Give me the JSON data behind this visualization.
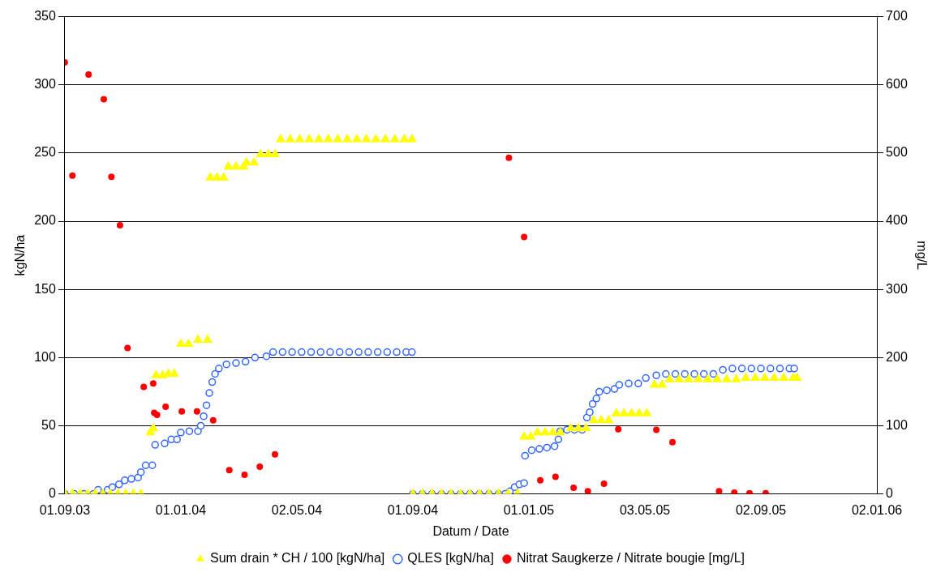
{
  "chart_data": {
    "type": "scatter",
    "xlabel": "Datum / Date",
    "ylabel": "kgN/ha",
    "y2label": "mg/L",
    "xlim": [
      "2003-09-01",
      "2006-01-02"
    ],
    "xticks": [
      {
        "value": "2003-09-01",
        "label": "01.09.03"
      },
      {
        "value": "2004-01-01",
        "label": "01.01.04"
      },
      {
        "value": "2004-05-02",
        "label": "02.05.04"
      },
      {
        "value": "2004-09-01",
        "label": "01.09.04"
      },
      {
        "value": "2005-01-01",
        "label": "01.01.05"
      },
      {
        "value": "2005-05-03",
        "label": "03.05.05"
      },
      {
        "value": "2005-09-02",
        "label": "02.09.05"
      },
      {
        "value": "2006-01-02",
        "label": "02.01.06"
      }
    ],
    "ylim": [
      0,
      350
    ],
    "yticks": [
      0,
      50,
      100,
      150,
      200,
      250,
      300,
      350
    ],
    "y2lim": [
      0,
      700
    ],
    "y2ticks": [
      0,
      100,
      200,
      300,
      400,
      500,
      600,
      700
    ],
    "grid": "y",
    "legend": "bottom",
    "series": [
      {
        "name": "Sum drain * CH / 100 [kgN/ha]",
        "color": "#ffff00",
        "marker": "triangle",
        "x": [
          "2003-09-01",
          "2003-09-09",
          "2003-09-17",
          "2003-09-25",
          "2003-10-03",
          "2003-10-11",
          "2003-10-19",
          "2003-10-27",
          "2003-11-04",
          "2003-11-12",
          "2003-11-20",
          "2003-11-30",
          "2003-12-03",
          "2003-12-06",
          "2003-12-13",
          "2003-12-19",
          "2003-12-25",
          "2004-01-01",
          "2004-01-09",
          "2004-01-19",
          "2004-01-29",
          "2004-02-01",
          "2004-02-08",
          "2004-02-15",
          "2004-02-20",
          "2004-02-28",
          "2004-03-07",
          "2004-03-10",
          "2004-03-18",
          "2004-03-25",
          "2004-04-02",
          "2004-04-09",
          "2004-04-15",
          "2004-04-25",
          "2004-05-05",
          "2004-05-15",
          "2004-05-25",
          "2004-06-04",
          "2004-06-14",
          "2004-06-24",
          "2004-07-04",
          "2004-07-14",
          "2004-07-24",
          "2004-08-03",
          "2004-08-13",
          "2004-08-23",
          "2004-08-31",
          "2004-09-01",
          "2004-09-11",
          "2004-09-21",
          "2004-10-01",
          "2004-10-11",
          "2004-10-21",
          "2004-10-31",
          "2004-11-10",
          "2004-11-20",
          "2004-11-30",
          "2004-12-10",
          "2004-12-20",
          "2004-12-27",
          "2005-01-03",
          "2005-01-10",
          "2005-01-18",
          "2005-01-26",
          "2005-02-03",
          "2005-02-14",
          "2005-02-22",
          "2005-03-02",
          "2005-03-10",
          "2005-03-18",
          "2005-03-26",
          "2005-04-03",
          "2005-04-11",
          "2005-04-19",
          "2005-04-27",
          "2005-05-05",
          "2005-05-13",
          "2005-05-21",
          "2005-05-29",
          "2005-06-08",
          "2005-06-18",
          "2005-06-28",
          "2005-07-08",
          "2005-07-18",
          "2005-07-28",
          "2005-08-07",
          "2005-08-17",
          "2005-08-27",
          "2005-09-06",
          "2005-09-16",
          "2005-09-26",
          "2005-10-06",
          "2005-10-10"
        ],
        "values": [
          0,
          0,
          0,
          0,
          0,
          0,
          0,
          0,
          0,
          0,
          0,
          45,
          48,
          87,
          87,
          88,
          88,
          110,
          110,
          113,
          113,
          232,
          232,
          232,
          240,
          240,
          240,
          243,
          243,
          249,
          249,
          249,
          260,
          260,
          260,
          260,
          260,
          260,
          260,
          260,
          260,
          260,
          260,
          260,
          260,
          260,
          260,
          0,
          0,
          0,
          0,
          0,
          0,
          0,
          0,
          0,
          0,
          0,
          0,
          42,
          42,
          45,
          45,
          45,
          45,
          48,
          48,
          48,
          54,
          54,
          54,
          59,
          59,
          59,
          59,
          59,
          80,
          80,
          84,
          84,
          84,
          84,
          84,
          84,
          84,
          84,
          85,
          85,
          85,
          85,
          85,
          85,
          85
        ]
      },
      {
        "name": "QLES [kgN/ha]",
        "color": "#3366ff",
        "marker": "circle",
        "x": [
          "2003-09-01",
          "2003-09-11",
          "2003-09-21",
          "2003-10-01",
          "2003-10-06",
          "2003-10-16",
          "2003-10-21",
          "2003-10-28",
          "2003-11-03",
          "2003-11-10",
          "2003-11-17",
          "2003-11-20",
          "2003-11-25",
          "2003-12-02",
          "2003-12-05",
          "2003-12-15",
          "2003-12-22",
          "2003-12-28",
          "2004-01-01",
          "2004-01-10",
          "2004-01-19",
          "2004-01-22",
          "2004-01-25",
          "2004-01-28",
          "2004-01-31",
          "2004-02-03",
          "2004-02-06",
          "2004-02-10",
          "2004-02-18",
          "2004-02-28",
          "2004-03-09",
          "2004-03-19",
          "2004-03-31",
          "2004-04-07",
          "2004-04-17",
          "2004-04-27",
          "2004-05-07",
          "2004-05-17",
          "2004-05-27",
          "2004-06-06",
          "2004-06-16",
          "2004-06-26",
          "2004-07-06",
          "2004-07-16",
          "2004-07-26",
          "2004-08-05",
          "2004-08-15",
          "2004-08-25",
          "2004-08-31",
          "2004-09-01",
          "2004-09-11",
          "2004-09-21",
          "2004-10-01",
          "2004-10-11",
          "2004-10-21",
          "2004-10-31",
          "2004-11-10",
          "2004-11-20",
          "2004-11-30",
          "2004-12-07",
          "2004-12-12",
          "2004-12-17",
          "2004-12-22",
          "2004-12-27",
          "2004-12-28",
          "2005-01-04",
          "2005-01-12",
          "2005-01-20",
          "2005-01-28",
          "2005-02-01",
          "2005-02-03",
          "2005-02-10",
          "2005-02-18",
          "2005-02-26",
          "2005-03-03",
          "2005-03-06",
          "2005-03-09",
          "2005-03-13",
          "2005-03-16",
          "2005-03-24",
          "2005-04-01",
          "2005-04-06",
          "2005-04-16",
          "2005-04-26",
          "2005-05-04",
          "2005-05-15",
          "2005-05-25",
          "2005-06-04",
          "2005-06-14",
          "2005-06-24",
          "2005-07-04",
          "2005-07-14",
          "2005-07-24",
          "2005-08-03",
          "2005-08-13",
          "2005-08-23",
          "2005-09-02",
          "2005-09-12",
          "2005-09-22",
          "2005-10-02",
          "2005-10-07"
        ],
        "values": [
          0,
          0,
          0,
          0,
          3,
          3,
          5,
          7,
          10,
          11,
          12,
          16,
          21,
          21,
          36,
          37,
          40,
          40,
          45,
          46,
          46,
          50,
          57,
          65,
          74,
          82,
          88,
          92,
          95,
          96,
          97,
          100,
          101,
          104,
          104,
          104,
          104,
          104,
          104,
          104,
          104,
          104,
          104,
          104,
          104,
          104,
          104,
          104,
          104,
          0,
          0,
          0,
          0,
          0,
          0,
          0,
          0,
          0,
          0,
          0,
          2,
          5,
          7,
          8,
          28,
          32,
          33,
          34,
          35,
          40,
          46,
          47,
          47,
          47,
          56,
          60,
          66,
          70,
          75,
          76,
          77,
          80,
          81,
          81,
          85,
          87,
          88,
          88,
          88,
          88,
          88,
          88,
          91,
          92,
          92,
          92,
          92,
          92,
          92,
          92,
          92
        ]
      },
      {
        "name": "Nitrat Saugkerze / Nitrate bougie [mg/L]",
        "color": "#ff0000",
        "marker": "circle",
        "axis": "y2",
        "x": [
          "2003-09-01",
          "2003-09-09",
          "2003-09-26",
          "2003-10-12",
          "2003-10-20",
          "2003-10-29",
          "2003-11-06",
          "2003-11-23",
          "2003-12-03",
          "2003-12-04",
          "2003-12-07",
          "2003-12-16",
          "2004-01-02",
          "2004-01-18",
          "2004-02-04",
          "2004-02-21",
          "2004-03-08",
          "2004-03-24",
          "2004-04-09",
          "2004-12-11",
          "2004-12-27",
          "2005-01-13",
          "2005-01-29",
          "2005-02-17",
          "2005-03-04",
          "2005-03-21",
          "2005-04-05",
          "2005-05-15",
          "2005-06-01",
          "2005-07-20",
          "2005-08-05",
          "2005-08-21",
          "2005-09-07"
        ],
        "values": [
          633,
          467,
          615,
          579,
          465,
          394,
          214,
          157,
          162,
          119,
          116,
          128,
          121,
          121,
          108,
          35,
          28,
          40,
          58,
          493,
          377,
          20,
          25,
          9,
          4,
          15,
          95,
          94,
          76,
          4,
          2,
          1,
          1
        ]
      }
    ]
  }
}
